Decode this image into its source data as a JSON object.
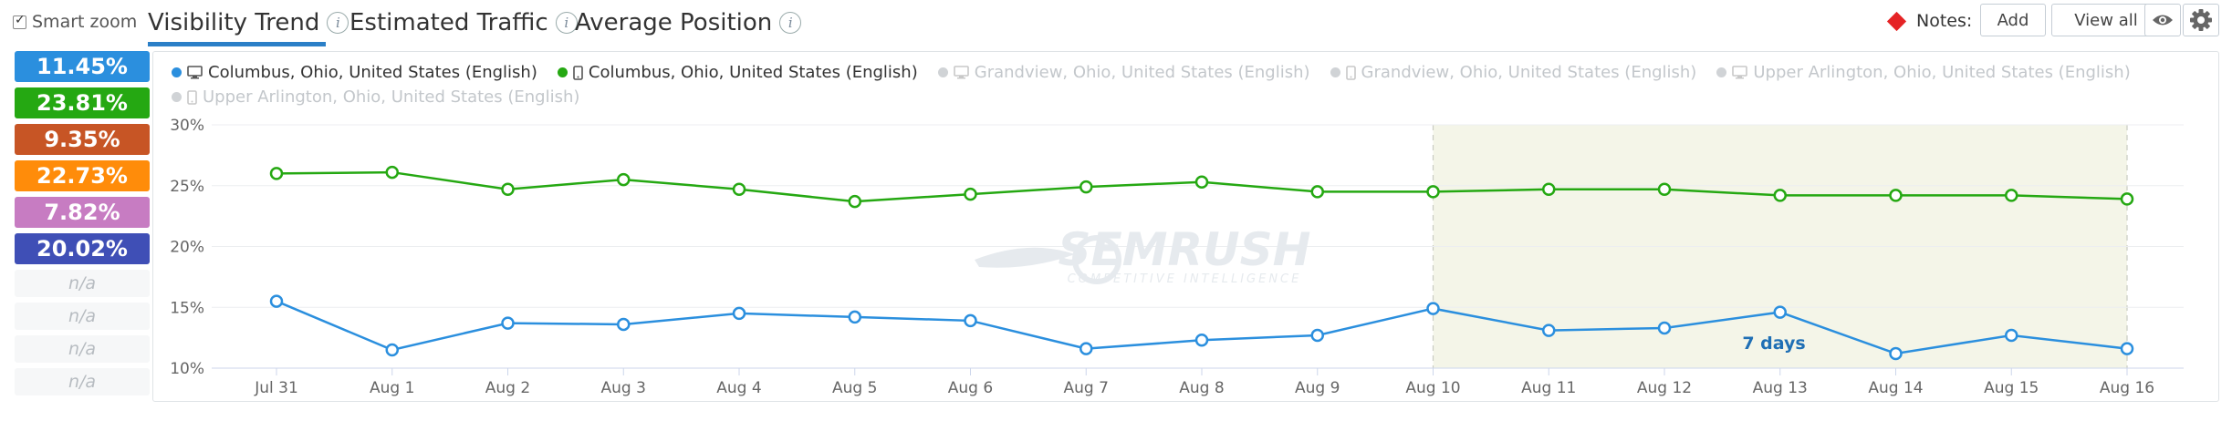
{
  "toolbar": {
    "smart_zoom_label": "Smart zoom",
    "tabs": [
      {
        "label": "Visibility Trend",
        "active": true
      },
      {
        "label": "Estimated Traffic",
        "active": false
      },
      {
        "label": "Average Position",
        "active": false
      }
    ],
    "info_glyph": "i",
    "notes_label": "Notes:",
    "add_label": "Add",
    "view_all_label": "View all"
  },
  "percentages": [
    {
      "value": "11.45%",
      "color": "#2b8fde"
    },
    {
      "value": "23.81%",
      "color": "#25a812"
    },
    {
      "value": "9.35%",
      "color": "#c75525"
    },
    {
      "value": "22.73%",
      "color": "#ff8c0a"
    },
    {
      "value": "7.82%",
      "color": "#c77cc2"
    },
    {
      "value": "20.02%",
      "color": "#3f4fb6"
    },
    {
      "value": "n/a",
      "color": ""
    },
    {
      "value": "n/a",
      "color": ""
    },
    {
      "value": "n/a",
      "color": ""
    },
    {
      "value": "n/a",
      "color": ""
    }
  ],
  "legend": [
    {
      "label": "Columbus, Ohio, United States (English)",
      "device": "desktop-icon",
      "color": "#2b8fde",
      "active": true
    },
    {
      "label": "Columbus, Ohio, United States (English)",
      "device": "mobile-icon",
      "color": "#25a812",
      "active": true
    },
    {
      "label": "Grandview, Ohio, United States (English)",
      "device": "desktop-icon",
      "color": "#cccccc",
      "active": false
    },
    {
      "label": "Grandview, Ohio, United States (English)",
      "device": "mobile-icon",
      "color": "#cccccc",
      "active": false
    },
    {
      "label": "Upper Arlington, Ohio, United States (English)",
      "device": "desktop-icon",
      "color": "#cccccc",
      "active": false
    },
    {
      "label": "Upper Arlington, Ohio, United States (English)",
      "device": "mobile-icon",
      "color": "#cccccc",
      "active": false
    }
  ],
  "watermark": {
    "brand": "SEMRUSH",
    "tagline": "COMPETITIVE INTELLIGENCE"
  },
  "chart_data": {
    "type": "line",
    "x": [
      "Jul 31",
      "Aug 1",
      "Aug 2",
      "Aug 3",
      "Aug 4",
      "Aug 5",
      "Aug 6",
      "Aug 7",
      "Aug 8",
      "Aug 9",
      "Aug 10",
      "Aug 11",
      "Aug 12",
      "Aug 13",
      "Aug 14",
      "Aug 15",
      "Aug 16"
    ],
    "yticks": [
      "10%",
      "15%",
      "20%",
      "25%",
      "30%"
    ],
    "ylim": [
      10,
      30
    ],
    "grid": true,
    "series": [
      {
        "name": "Columbus, Ohio, United States (English)",
        "color": "#25a812",
        "values": [
          26.0,
          26.1,
          24.7,
          25.5,
          24.7,
          23.7,
          24.3,
          24.9,
          25.3,
          24.5,
          24.5,
          24.7,
          24.7,
          24.2,
          24.2,
          24.2,
          23.9
        ]
      },
      {
        "name": "Columbus, Ohio, United States (English)",
        "color": "#2b8fde",
        "values": [
          15.5,
          11.5,
          13.7,
          13.6,
          14.5,
          14.2,
          13.9,
          11.6,
          12.3,
          12.7,
          14.9,
          13.1,
          13.3,
          14.6,
          11.2,
          12.7,
          11.6
        ]
      }
    ],
    "highlight": {
      "from": "Aug 10",
      "to": "Aug 16",
      "label": "7 days"
    }
  }
}
